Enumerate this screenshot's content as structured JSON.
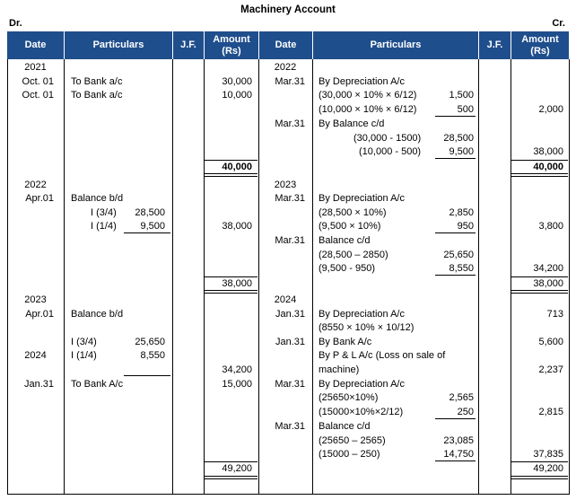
{
  "title": "Machinery Account",
  "dr": "Dr.",
  "cr": "Cr.",
  "headers": {
    "date": "Date",
    "particulars": "Particulars",
    "jf": "J.F.",
    "amount": "Amount",
    "rs": "(Rs)"
  },
  "debit": {
    "s1": {
      "year": "2021",
      "d1": "Oct. 01",
      "p1": "To Bank a/c",
      "a1": "30,000",
      "d2": "Oct. 01",
      "p2": "To Bank a/c",
      "a2": "10,000",
      "total": "40,000"
    },
    "s2": {
      "year": "2022",
      "d1": "Apr.01",
      "p1": "Balance b/d",
      "i1": "I (3/4)",
      "i1v": "28,500",
      "i2": "I (1/4)",
      "i2v": "9,500",
      "amt": "38,000",
      "total": "38,000"
    },
    "s3": {
      "year": "2023",
      "d1": "Apr.01",
      "p1": "Balance b/d",
      "i1": "I (3/4)",
      "i1v": "25,650",
      "year2": "2024",
      "i2": "I (1/4)",
      "i2v": "8,550",
      "amt1": "34,200",
      "d2": "Jan.31",
      "p2": "To Bank A/c",
      "amt2": "15,000",
      "total": "49,200"
    }
  },
  "credit": {
    "s1": {
      "year": "2022",
      "d1": "Mar.31",
      "p1": "By Depreciation A/c",
      "c1": "(30,000 × 10% × 6/12)",
      "c1v": "1,500",
      "c2": "(10,000 × 10% × 6/12)",
      "c2v": "500",
      "a1": "2,000",
      "d2": "Mar.31",
      "p2": "By Balance c/d",
      "c3": "(30,000 - 1500)",
      "c3v": "28,500",
      "c4": "(10,000 - 500)",
      "c4v": "9,500",
      "a2": "38,000",
      "total": "40,000"
    },
    "s2": {
      "year": "2023",
      "d1": "Mar.31",
      "p1": "By Depreciation A/c",
      "c1": "(28,500 × 10%)",
      "c1v": "2,850",
      "c2": "(9,500 × 10%)",
      "c2v": "950",
      "a1": "3,800",
      "d2": "Mar.31",
      "p2": "Balance c/d",
      "c3": "(28,500 – 2850)",
      "c3v": "25,650",
      "c4": "(9,500 - 950)",
      "c4v": "8,550",
      "a2": "34,200",
      "total": "38,000"
    },
    "s3": {
      "year": "2024",
      "d1": "Jan.31",
      "p1": "By Depreciation A/c",
      "c1": "(8550 × 10% × 10/12)",
      "a1": "713",
      "d2": "Jan.31",
      "p2": "By Bank A/c",
      "a2": "5,600",
      "p3a": "By P & L A/c (Loss on sale of",
      "p3b": "machine)",
      "a3": "2,237",
      "d4": "Mar.31",
      "p4": "By Depreciation A/c",
      "c4": "(25650×10%)",
      "c4v": "2,565",
      "c5": "(15000×10%×2/12)",
      "c5v": "250",
      "a4": "2,815",
      "d5": "Mar.31",
      "p5": "Balance c/d",
      "c6": "(25650 – 2565)",
      "c6v": "23,085",
      "c7": "(15000 – 250)",
      "c7v": "14,750",
      "a5": "37,835",
      "total": "49,200"
    }
  }
}
